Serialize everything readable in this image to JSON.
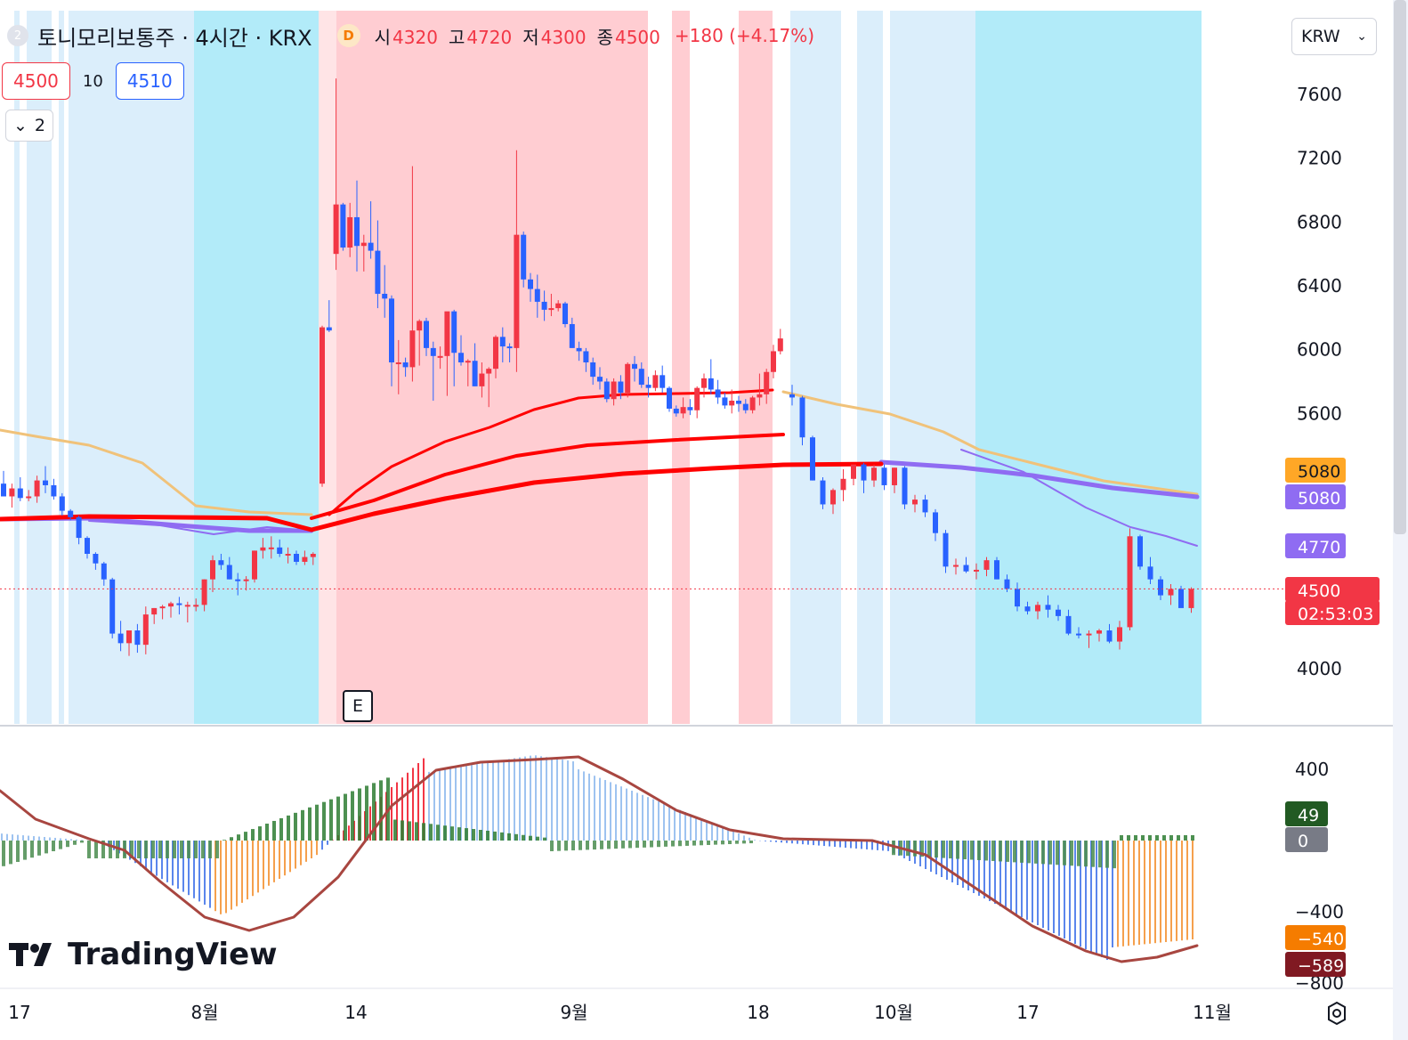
{
  "header": {
    "badge": "2",
    "symbol": "토니모리보통주 · 4시간 · KRX",
    "delay_badge": "D",
    "open_label": "시",
    "open": "4320",
    "high_label": "고",
    "high": "4720",
    "low_label": "저",
    "low": "4300",
    "close_label": "종",
    "close": "4500",
    "change": "+180 (+4.17%)"
  },
  "quote": {
    "sell": "4500",
    "spread": "10",
    "buy": "4510"
  },
  "collapse": {
    "count": "2"
  },
  "currency": {
    "label": "KRW"
  },
  "event_marker": "E",
  "logo": {
    "text": "TradingView"
  },
  "colors": {
    "up": "#f23645",
    "down": "#2962ff",
    "zone_red": "#ffcdd2",
    "zone_blue": "#b2ebf9",
    "zone_lightblue": "#dbeefb",
    "ma_red": "#ff0000",
    "ma_tan": "#f0c27a",
    "ma_purple": "#8f6cf2",
    "macd_line": "#a84640"
  },
  "chart_data": {
    "type": "candlestick",
    "interval": "4H",
    "price_axis": {
      "ticks": [
        4000,
        4400,
        4800,
        5200,
        5600,
        6000,
        6400,
        6800,
        7200,
        7600
      ],
      "tick_labels": [
        "4000",
        "",
        "",
        "",
        "5600",
        "6000",
        "6400",
        "6800",
        "7200",
        "7600"
      ],
      "range": [
        3650,
        7850
      ]
    },
    "time_axis": {
      "labels": [
        "17",
        "8월",
        "14",
        "9월",
        "18",
        "10월",
        "17",
        "11월"
      ]
    },
    "price_labels": [
      {
        "text": "5080",
        "value": 5080,
        "bg": "#ffa726",
        "fg": "#131722"
      },
      {
        "text": "5080",
        "value": 5080,
        "bg": "#8f6cf2",
        "fg": "#ffffff"
      },
      {
        "text": "4770",
        "value": 4770,
        "bg": "#8f6cf2",
        "fg": "#ffffff"
      },
      {
        "text": "4500",
        "value": 4500,
        "bg": "#f23645",
        "fg": "#ffffff"
      },
      {
        "text": "02:53:03",
        "value": 4500,
        "bg": "#f23645",
        "fg": "#ffffff"
      }
    ],
    "last_price": 4500,
    "zones": [
      {
        "from": 16,
        "to": 22,
        "color": "zone_lightblue"
      },
      {
        "from": 30,
        "to": 58,
        "color": "zone_lightblue"
      },
      {
        "from": 66,
        "to": 72,
        "color": "zone_lightblue"
      },
      {
        "from": 77,
        "to": 218,
        "color": "zone_lightblue"
      },
      {
        "from": 218,
        "to": 358,
        "color": "zone_blue"
      },
      {
        "from": 358,
        "to": 378,
        "color": "zone_red_light"
      },
      {
        "from": 378,
        "to": 728,
        "color": "zone_red"
      },
      {
        "from": 755,
        "to": 775,
        "color": "zone_red"
      },
      {
        "from": 830,
        "to": 868,
        "color": "zone_red"
      },
      {
        "from": 888,
        "to": 945,
        "color": "zone_lightblue"
      },
      {
        "from": 963,
        "to": 992,
        "color": "zone_lightblue"
      },
      {
        "from": 1000,
        "to": 1096,
        "color": "zone_lightblue"
      },
      {
        "from": 1096,
        "to": 1350,
        "color": "zone_blue"
      }
    ],
    "candles": [
      [
        5160,
        5240,
        5080,
        5080
      ],
      [
        5080,
        5160,
        5010,
        5130
      ],
      [
        5130,
        5200,
        5050,
        5070
      ],
      [
        5070,
        5120,
        5050,
        5080
      ],
      [
        5080,
        5210,
        5040,
        5180
      ],
      [
        5180,
        5270,
        5100,
        5150
      ],
      [
        5150,
        5190,
        5060,
        5080
      ],
      [
        5080,
        5100,
        4960,
        4990
      ],
      [
        4990,
        5000,
        4930,
        4950
      ],
      [
        4950,
        4960,
        4780,
        4820
      ],
      [
        4820,
        4830,
        4690,
        4720
      ],
      [
        4720,
        4730,
        4620,
        4660
      ],
      [
        4660,
        4670,
        4520,
        4560
      ],
      [
        4560,
        4570,
        4190,
        4220
      ],
      [
        4220,
        4300,
        4110,
        4160
      ],
      [
        4160,
        4240,
        4080,
        4240
      ],
      [
        4240,
        4280,
        4100,
        4150
      ],
      [
        4150,
        4390,
        4090,
        4340
      ],
      [
        4340,
        4380,
        4280,
        4380
      ],
      [
        4380,
        4400,
        4310,
        4390
      ],
      [
        4390,
        4420,
        4320,
        4410
      ],
      [
        4410,
        4450,
        4340,
        4400
      ],
      [
        4400,
        4420,
        4290,
        4400
      ],
      [
        4400,
        4440,
        4360,
        4400
      ],
      [
        4400,
        4560,
        4360,
        4560
      ],
      [
        4560,
        4710,
        4480,
        4680
      ],
      [
        4680,
        4720,
        4620,
        4650
      ],
      [
        4650,
        4700,
        4560,
        4560
      ],
      [
        4560,
        4600,
        4460,
        4550
      ],
      [
        4550,
        4580,
        4490,
        4560
      ],
      [
        4560,
        4740,
        4540,
        4740
      ],
      [
        4740,
        4820,
        4690,
        4760
      ],
      [
        4760,
        4830,
        4690,
        4760
      ],
      [
        4760,
        4810,
        4700,
        4720
      ],
      [
        4720,
        4760,
        4660,
        4720
      ],
      [
        4720,
        4740,
        4650,
        4670
      ],
      [
        4670,
        4740,
        4650,
        4700
      ],
      [
        4700,
        4730,
        4650,
        4720
      ],
      [
        5160,
        6150,
        5140,
        6140
      ],
      [
        6140,
        6310,
        6110,
        6120
      ],
      [
        6600,
        7700,
        6500,
        6910
      ],
      [
        6910,
        6920,
        6620,
        6640
      ],
      [
        6640,
        6920,
        6580,
        6830
      ],
      [
        6830,
        7060,
        6490,
        6650
      ],
      [
        6650,
        6720,
        6490,
        6670
      ],
      [
        6670,
        6930,
        6570,
        6620
      ],
      [
        6620,
        6810,
        6260,
        6350
      ],
      [
        6350,
        6530,
        6200,
        6320
      ],
      [
        6320,
        6340,
        5770,
        5920
      ],
      [
        5920,
        6060,
        5720,
        5920
      ],
      [
        5920,
        5950,
        5830,
        5890
      ],
      [
        5890,
        7150,
        5800,
        6120
      ],
      [
        6120,
        6190,
        5900,
        6180
      ],
      [
        6180,
        6200,
        5960,
        6010
      ],
      [
        6010,
        6050,
        5680,
        5960
      ],
      [
        5960,
        6020,
        5880,
        5960
      ],
      [
        5960,
        6230,
        5710,
        6240
      ],
      [
        6240,
        6250,
        5770,
        5980
      ],
      [
        5980,
        6090,
        5900,
        5920
      ],
      [
        5920,
        5940,
        5770,
        5930
      ],
      [
        5930,
        6040,
        5770,
        5770
      ],
      [
        5770,
        5920,
        5700,
        5850
      ],
      [
        5850,
        5890,
        5640,
        5880
      ],
      [
        5880,
        6090,
        5820,
        6080
      ],
      [
        6080,
        6140,
        5920,
        6020
      ],
      [
        6020,
        6040,
        5920,
        6010
      ],
      [
        6010,
        7250,
        5860,
        6720
      ],
      [
        6720,
        6740,
        6390,
        6440
      ],
      [
        6440,
        6480,
        6300,
        6380
      ],
      [
        6380,
        6470,
        6200,
        6300
      ],
      [
        6300,
        6370,
        6180,
        6250
      ],
      [
        6250,
        6350,
        6210,
        6260
      ],
      [
        6260,
        6310,
        6240,
        6290
      ],
      [
        6290,
        6300,
        6140,
        6160
      ],
      [
        6160,
        6200,
        6010,
        6010
      ],
      [
        6010,
        6050,
        5930,
        5990
      ],
      [
        5990,
        6010,
        5860,
        5920
      ],
      [
        5920,
        5950,
        5780,
        5830
      ],
      [
        5830,
        5890,
        5750,
        5800
      ],
      [
        5800,
        5820,
        5670,
        5690
      ],
      [
        5690,
        5820,
        5650,
        5800
      ],
      [
        5800,
        5840,
        5690,
        5730
      ],
      [
        5730,
        5920,
        5700,
        5910
      ],
      [
        5910,
        5960,
        5800,
        5880
      ],
      [
        5880,
        5920,
        5760,
        5780
      ],
      [
        5780,
        5830,
        5700,
        5760
      ],
      [
        5760,
        5870,
        5740,
        5840
      ],
      [
        5840,
        5900,
        5730,
        5760
      ],
      [
        5760,
        5770,
        5610,
        5630
      ],
      [
        5630,
        5650,
        5580,
        5600
      ],
      [
        5600,
        5700,
        5570,
        5640
      ],
      [
        5640,
        5690,
        5590,
        5620
      ],
      [
        5620,
        5770,
        5570,
        5760
      ],
      [
        5760,
        5850,
        5700,
        5820
      ],
      [
        5820,
        5940,
        5720,
        5750
      ],
      [
        5750,
        5810,
        5660,
        5700
      ],
      [
        5700,
        5730,
        5630,
        5650
      ],
      [
        5650,
        5750,
        5600,
        5680
      ],
      [
        5680,
        5710,
        5610,
        5660
      ],
      [
        5660,
        5690,
        5600,
        5620
      ],
      [
        5620,
        5710,
        5600,
        5700
      ],
      [
        5700,
        5850,
        5650,
        5720
      ],
      [
        5720,
        5880,
        5660,
        5860
      ],
      [
        5860,
        6030,
        5820,
        5990
      ],
      [
        5990,
        6130,
        5970,
        6070
      ]
    ],
    "macd": {
      "axis_ticks": [
        400,
        0,
        -400,
        -800
      ],
      "labels": [
        {
          "text": "49",
          "value": 49,
          "bg": "#225a23"
        },
        {
          "text": "0",
          "value": 0,
          "bg": "#787b86"
        },
        {
          "text": "-540",
          "value": -540,
          "bg": "#f57c00"
        },
        {
          "text": "-589",
          "value": -589,
          "bg": "#801922"
        }
      ]
    }
  }
}
